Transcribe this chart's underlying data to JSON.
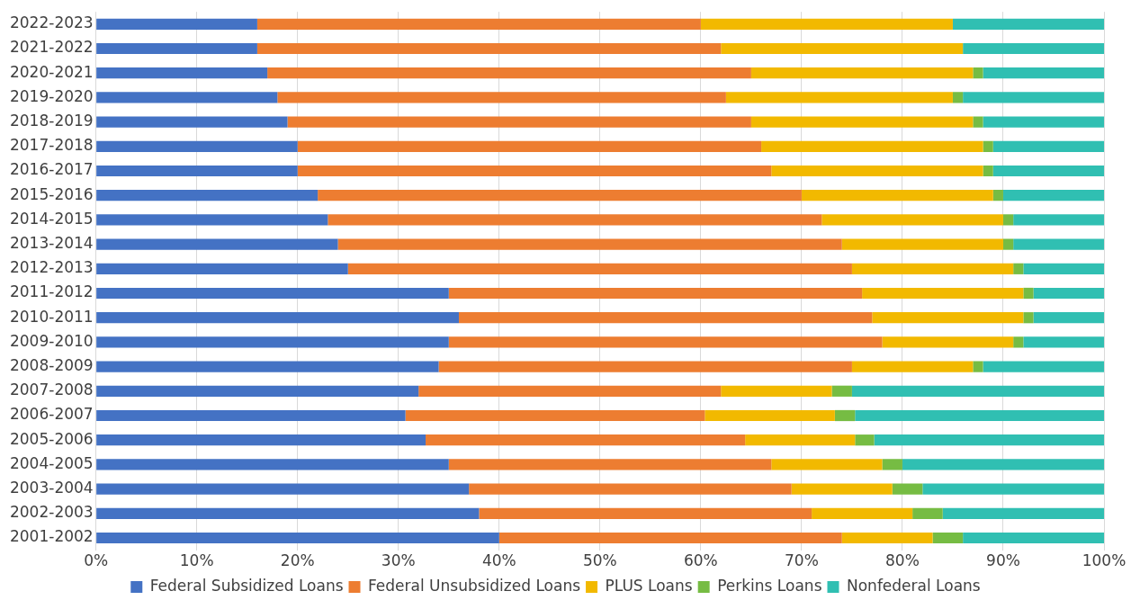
{
  "chart_data": {
    "type": "bar",
    "orientation": "horizontal",
    "stacked": true,
    "categories": [
      "2022-2023",
      "2021-2022",
      "2020-2021",
      "2019-2020",
      "2018-2019",
      "2017-2018",
      "2016-2017",
      "2015-2016",
      "2014-2015",
      "2013-2014",
      "2012-2013",
      "2011-2012",
      "2010-2011",
      "2009-2010",
      "2008-2009",
      "2007-2008",
      "2006-2007",
      "2005-2006",
      "2004-2005",
      "2003-2004",
      "2002-2003",
      "2001-2002"
    ],
    "series": [
      {
        "name": "Federal Subsidized Loans",
        "color": "#4472c4",
        "values": [
          16,
          16,
          17,
          18,
          19,
          20,
          20,
          22,
          23,
          24,
          25,
          35,
          36,
          35,
          34,
          32,
          30.7,
          32.7,
          35,
          37,
          38,
          40
        ]
      },
      {
        "name": "Federal Unsubsidized Loans",
        "color": "#ed7d31",
        "values": [
          44,
          46,
          48,
          44.5,
          46,
          46,
          47,
          48,
          49,
          50,
          50,
          41,
          41,
          43,
          41,
          30,
          29.7,
          31.7,
          32,
          32,
          33,
          34
        ]
      },
      {
        "name": "PLUS Loans",
        "color": "#f2b900",
        "values": [
          25,
          24,
          22,
          22.5,
          22,
          22,
          21,
          19,
          18,
          16,
          16,
          16,
          15,
          13,
          12,
          11,
          12.9,
          10.9,
          11,
          10,
          10,
          9
        ]
      },
      {
        "name": "Perkins Loans",
        "color": "#76bc43",
        "values": [
          0,
          0,
          1,
          1,
          1,
          1,
          1,
          1,
          1,
          1,
          1,
          1,
          1,
          1,
          1,
          2,
          2,
          1.9,
          2,
          3,
          3,
          3
        ]
      },
      {
        "name": "Nonfederal Loans",
        "color": "#30bfb2",
        "values": [
          15,
          14,
          12,
          14,
          12,
          11,
          11,
          10,
          9,
          9,
          8,
          7,
          7,
          8,
          12,
          25,
          24.7,
          22.8,
          20,
          18,
          16,
          14
        ]
      }
    ],
    "xlim": [
      0,
      100
    ],
    "xticks": [
      {
        "value": 0,
        "label": "0%"
      },
      {
        "value": 10,
        "label": "10%"
      },
      {
        "value": 20,
        "label": "20%"
      },
      {
        "value": 30,
        "label": "30%"
      },
      {
        "value": 40,
        "label": "40%"
      },
      {
        "value": 50,
        "label": "50%"
      },
      {
        "value": 60,
        "label": "60%"
      },
      {
        "value": 70,
        "label": "70%"
      },
      {
        "value": 80,
        "label": "80%"
      },
      {
        "value": 90,
        "label": "90%"
      },
      {
        "value": 100,
        "label": "100%"
      }
    ],
    "grid": "x",
    "legend": "bottom"
  }
}
